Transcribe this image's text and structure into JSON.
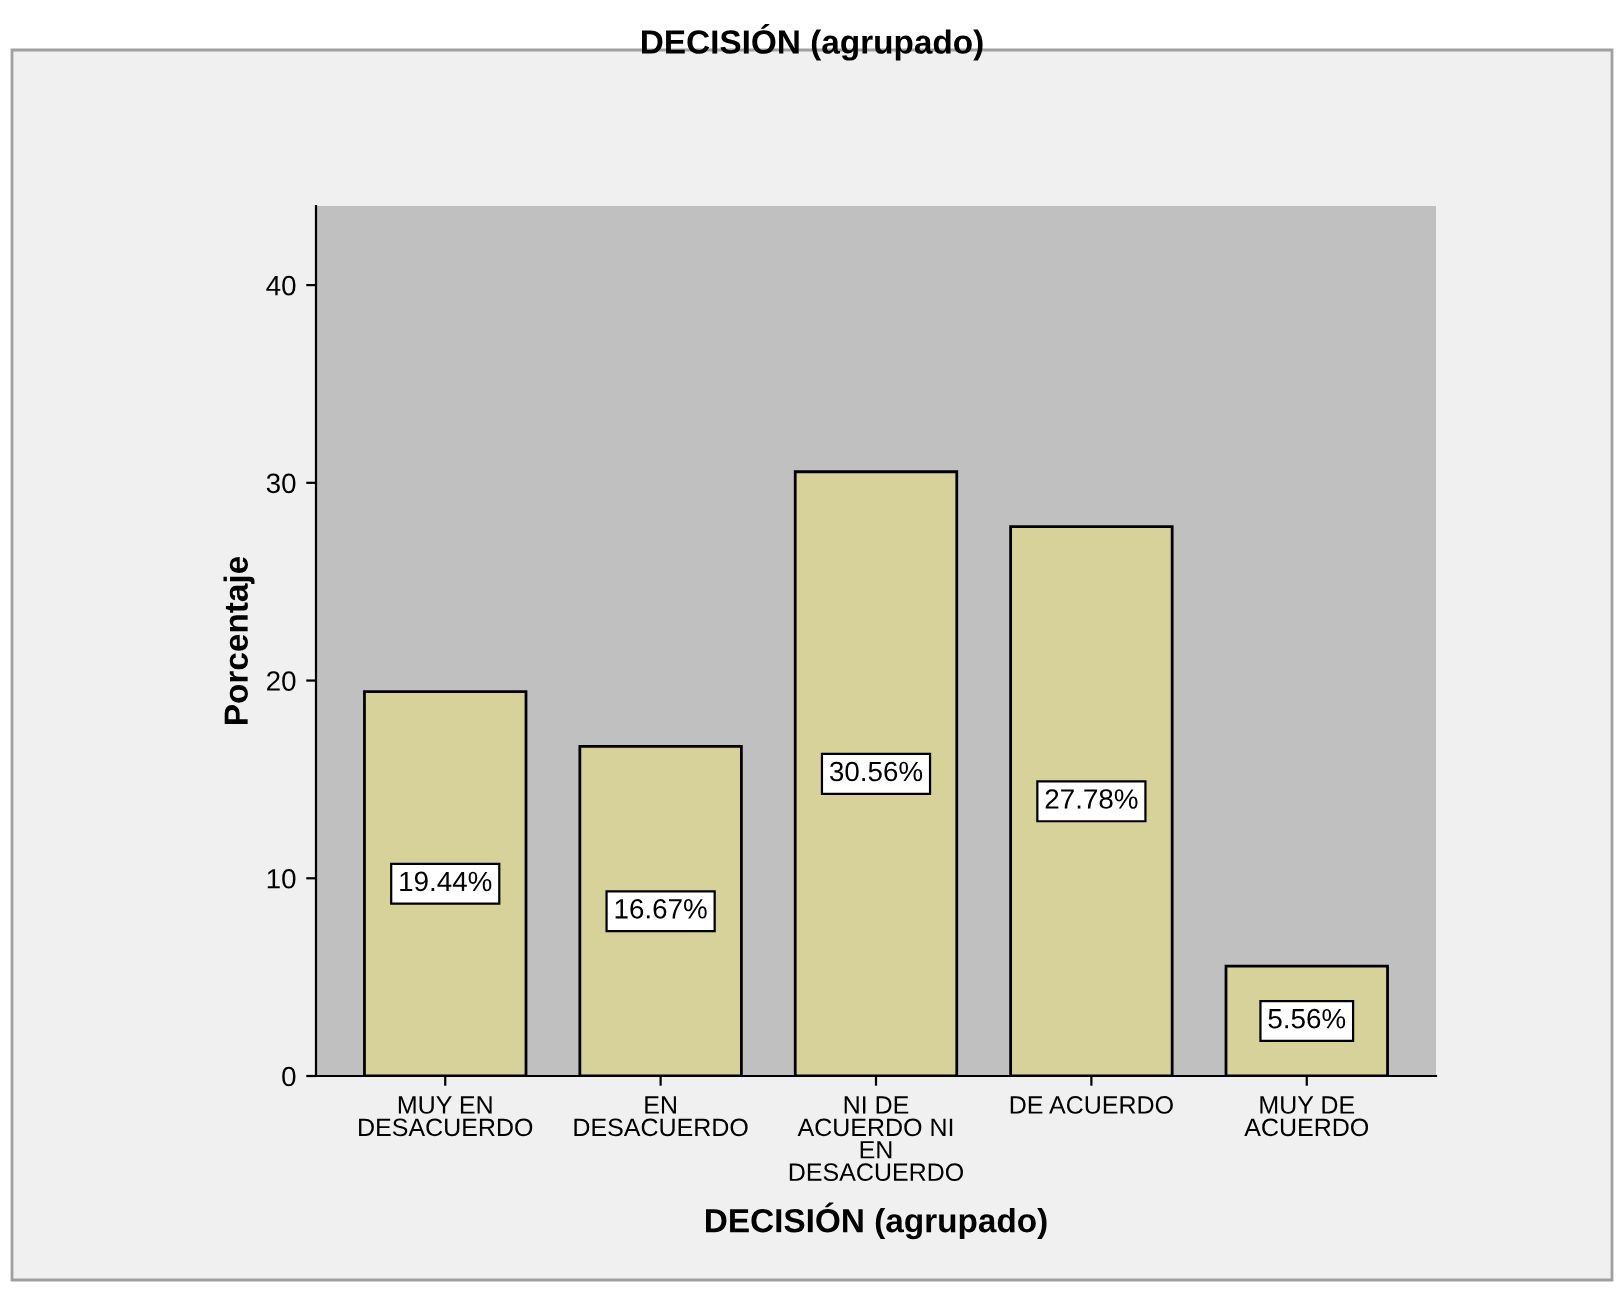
{
  "chart_data": {
    "type": "bar",
    "title": "DECISIÓN (agrupado)",
    "xlabel": "DECISIÓN (agrupado)",
    "ylabel": "Porcentaje",
    "categories": [
      "MUY EN\nDESACUERDO",
      "EN\nDESACUERDO",
      "NI DE\nACUERDO NI\nEN\nDESACUERDO",
      "DE ACUERDO",
      "MUY DE\nACUERDO"
    ],
    "values": [
      19.44,
      16.67,
      30.56,
      27.78,
      5.56
    ],
    "value_labels": [
      "19.44%",
      "16.67%",
      "30.56%",
      "27.78%",
      "5.56%"
    ],
    "color": "#d6d29a",
    "ylim": [
      0,
      44
    ],
    "yticks": [
      0,
      10,
      20,
      30,
      40
    ],
    "grid": false
  }
}
